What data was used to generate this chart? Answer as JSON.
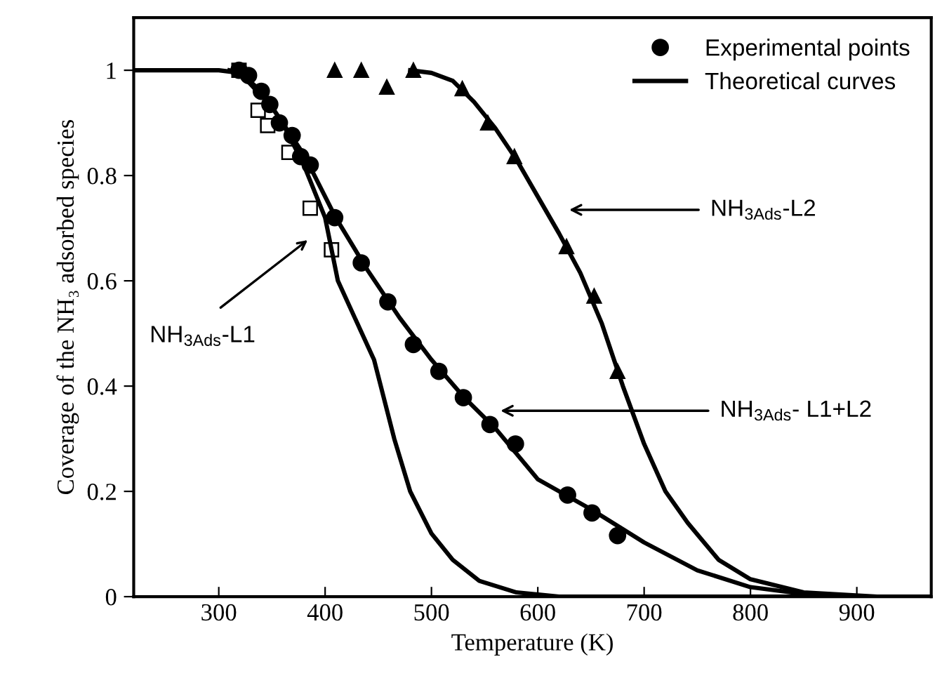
{
  "chart_data": {
    "type": "scatter",
    "xlabel": "Temperature (K)",
    "ylabel": "Coverage of the NH₃ adsorbed species",
    "xlim": [
      220,
      970
    ],
    "ylim": [
      0,
      1.1
    ],
    "xticks": [
      300,
      400,
      500,
      600,
      700,
      800,
      900
    ],
    "yticks": [
      {
        "value": 0,
        "label": "0"
      },
      {
        "value": 0.2,
        "label": "0.2"
      },
      {
        "value": 0.4,
        "label": "0.4"
      },
      {
        "value": 0.6,
        "label": "0.6"
      },
      {
        "value": 0.8,
        "label": "0.8"
      },
      {
        "value": 1,
        "label": "1"
      }
    ],
    "grid": false,
    "legend": "top right",
    "line_style": "solid",
    "series": [
      {
        "name": "Experimental points",
        "marker": "circle",
        "color": "#000000",
        "x": [
          319,
          328,
          340,
          348,
          357,
          369,
          377,
          386,
          409,
          434,
          459,
          483,
          507,
          530,
          555,
          579,
          628,
          651,
          675
        ],
        "values": [
          1.0,
          0.99,
          0.96,
          0.935,
          0.9,
          0.876,
          0.836,
          0.82,
          0.72,
          0.634,
          0.56,
          0.479,
          0.428,
          0.378,
          0.327,
          0.29,
          0.193,
          0.159,
          0.116
        ]
      },
      {
        "marker": "triangle",
        "color": "#000000",
        "x": [
          409,
          434,
          458,
          483,
          529,
          553,
          578,
          627,
          653,
          675
        ],
        "values": [
          1.0,
          1.0,
          0.968,
          1.0,
          0.965,
          0.9,
          0.836,
          0.665,
          0.571,
          0.428
        ]
      },
      {
        "marker": "square",
        "color": "#000000",
        "x": [
          319,
          337,
          346,
          366,
          386,
          406
        ],
        "values": [
          1.0,
          0.924,
          0.895,
          0.844,
          0.738,
          0.659
        ]
      },
      {
        "type": "line",
        "name": "Theoretical curves",
        "color": "#000000",
        "x": [
          220,
          300,
          320,
          340,
          360,
          380,
          400,
          412,
          436,
          446,
          465,
          480,
          500,
          520,
          545,
          580,
          620,
          970
        ],
        "values": [
          1,
          1,
          0.995,
          0.96,
          0.9,
          0.82,
          0.72,
          0.6,
          0.494,
          0.45,
          0.3,
          0.2,
          0.12,
          0.07,
          0.03,
          0.008,
          0,
          0
        ]
      },
      {
        "type": "line",
        "color": "#000000",
        "x": [
          310,
          320,
          350,
          380,
          410,
          440,
          470,
          500,
          530,
          560,
          600,
          650,
          700,
          750,
          800,
          850,
          900
        ],
        "values": [
          1,
          0.995,
          0.93,
          0.84,
          0.72,
          0.62,
          0.53,
          0.45,
          0.38,
          0.32,
          0.223,
          0.166,
          0.103,
          0.05,
          0.018,
          0.005,
          0
        ]
      },
      {
        "type": "line",
        "color": "#000000",
        "x": [
          480,
          500,
          520,
          540,
          560,
          580,
          600,
          620,
          640,
          660,
          680,
          700,
          720,
          741,
          770,
          800,
          850,
          920
        ],
        "values": [
          1,
          0.995,
          0.98,
          0.94,
          0.89,
          0.83,
          0.76,
          0.69,
          0.615,
          0.52,
          0.4,
          0.29,
          0.2,
          0.14,
          0.07,
          0.033,
          0.008,
          0
        ]
      }
    ],
    "annotations": [
      "NH$_{3Ads}$-L1",
      "NH$_{3Ads}$-L2",
      "NH$_{3Ads}$- L1+L2"
    ]
  }
}
